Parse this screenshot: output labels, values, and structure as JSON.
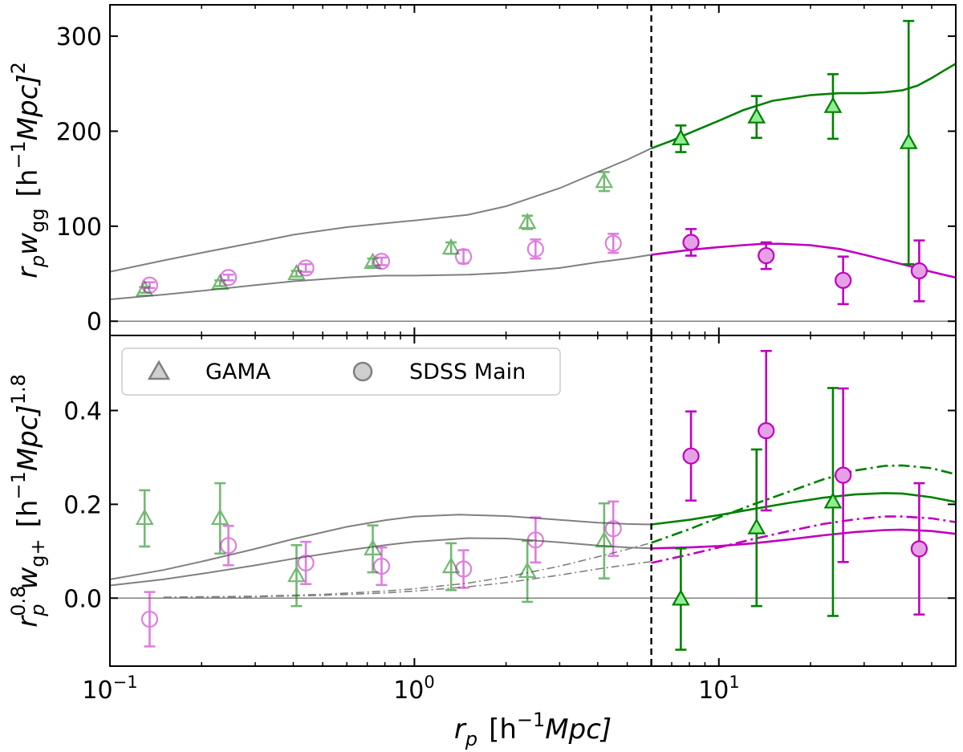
{
  "chart_data": [
    {
      "type": "scatter",
      "panel": "top",
      "ylabel": "r_p w_gg [h^-1 Mpc]^2",
      "ylim": [
        -15,
        333
      ],
      "yticks": [
        0,
        100,
        200,
        300
      ],
      "ytick_labels": [
        "0",
        "100",
        "200",
        "300"
      ],
      "xscale": "log",
      "xlim": [
        0.1,
        60
      ],
      "series": [
        {
          "name": "GAMA",
          "color": "#008000",
          "fill": "#90ee90",
          "marker": "triangle",
          "kind": "points",
          "x": [
            0.13,
            0.23,
            0.41,
            0.73,
            1.32,
            2.35,
            4.2
          ],
          "y": [
            33,
            40,
            50,
            62,
            77,
            104,
            147
          ],
          "err": [
            3,
            3,
            3,
            4,
            6,
            7,
            10
          ],
          "alpha": 0.55,
          "open": true
        },
        {
          "name": "GAMA",
          "color": "#008000",
          "fill": "#90ee90",
          "marker": "triangle",
          "kind": "points",
          "x": [
            7.5,
            13.3,
            23.7,
            42.0
          ],
          "y": [
            192,
            215,
            226,
            188
          ],
          "err": [
            14,
            22,
            34,
            128
          ],
          "alpha": 1,
          "open": false
        },
        {
          "name": "SDSS Main",
          "color": "#bf00bf",
          "fill": "#e6a0e6",
          "marker": "circle",
          "kind": "points",
          "x": [
            0.135,
            0.245,
            0.44,
            0.78,
            1.45,
            2.5,
            4.5
          ],
          "y": [
            38,
            46,
            56,
            63,
            68,
            76,
            82
          ],
          "err": [
            3,
            3,
            4,
            4,
            7,
            10,
            10
          ],
          "alpha": 0.5,
          "open": true
        },
        {
          "name": "SDSS Main",
          "color": "#bf00bf",
          "fill": "#e6a0e6",
          "marker": "circle",
          "kind": "points",
          "x": [
            8.1,
            14.3,
            25.6,
            45.5
          ],
          "y": [
            83,
            69,
            43,
            53
          ],
          "err": [
            14,
            14,
            25,
            32
          ],
          "alpha": 1,
          "open": false
        },
        {
          "name": "GAMA model",
          "color": "#808080",
          "kind": "line",
          "width": 2,
          "x": [
            0.1,
            0.15,
            0.2,
            0.3,
            0.4,
            0.6,
            0.8,
            1.0,
            1.5,
            2,
            3,
            4,
            5,
            6
          ],
          "y": [
            52,
            64,
            72,
            83,
            91,
            99,
            103,
            106,
            112,
            121,
            140,
            157,
            170,
            182
          ]
        },
        {
          "name": "SDSS model",
          "color": "#808080",
          "kind": "line",
          "width": 2,
          "x": [
            0.1,
            0.15,
            0.2,
            0.3,
            0.4,
            0.6,
            0.8,
            1.0,
            1.5,
            2,
            3,
            4,
            5,
            6
          ],
          "y": [
            23,
            28,
            32,
            38,
            42,
            46,
            48,
            48,
            49,
            51,
            56,
            62,
            66,
            70
          ]
        },
        {
          "name": "GAMA model (large scale)",
          "color": "#008000",
          "kind": "line",
          "width": 2.6,
          "x": [
            6,
            7,
            8,
            10,
            12,
            15,
            20,
            25,
            30,
            35,
            40,
            45,
            50,
            55,
            60
          ],
          "y": [
            182,
            190,
            198,
            211,
            222,
            232,
            238,
            240,
            240,
            241,
            243,
            248,
            256,
            264,
            271
          ]
        },
        {
          "name": "SDSS model (large scale)",
          "color": "#bf00bf",
          "kind": "line",
          "width": 2.6,
          "x": [
            6,
            8,
            10,
            12,
            14,
            16,
            20,
            25,
            30,
            40,
            50,
            60
          ],
          "y": [
            70,
            75,
            78,
            80,
            81.5,
            81.5,
            80,
            76,
            70,
            60,
            52,
            46
          ]
        },
        {
          "name": "zero",
          "color": "#808080",
          "kind": "line",
          "width": 1.5,
          "x": [
            0.1,
            60
          ],
          "y": [
            0,
            0
          ]
        }
      ]
    },
    {
      "type": "scatter",
      "panel": "bottom",
      "ylabel": "r_p^0.8 w_g+ [h^-1 Mpc]^1.8",
      "xlabel": "r_p [h^-1 Mpc]",
      "ylim": [
        -0.145,
        0.56
      ],
      "yticks": [
        0.0,
        0.2,
        0.4
      ],
      "ytick_labels": [
        "0.0",
        "0.2",
        "0.4"
      ],
      "xscale": "log",
      "xlim": [
        0.1,
        60
      ],
      "xticks": [
        0.1,
        1,
        10
      ],
      "series": [
        {
          "name": "GAMA",
          "color": "#008000",
          "fill": "#90ee90",
          "marker": "triangle",
          "kind": "points",
          "x": [
            0.13,
            0.23,
            0.41,
            0.73,
            1.32,
            2.35,
            4.2
          ],
          "y": [
            0.17,
            0.17,
            0.048,
            0.105,
            0.067,
            0.057,
            0.122
          ],
          "err": [
            0.06,
            0.075,
            0.065,
            0.05,
            0.05,
            0.065,
            0.08
          ],
          "alpha": 0.55,
          "open": true
        },
        {
          "name": "GAMA",
          "color": "#008000",
          "fill": "#90ee90",
          "marker": "triangle",
          "kind": "points",
          "x": [
            7.5,
            13.3,
            23.7
          ],
          "y": [
            -0.002,
            0.15,
            0.205
          ],
          "err": [
            0.108,
            0.167,
            0.243
          ],
          "alpha": 1,
          "open": false
        },
        {
          "name": "SDSS Main",
          "color": "#bf00bf",
          "fill": "#e6a0e6",
          "marker": "circle",
          "kind": "points",
          "x": [
            0.135,
            0.245,
            0.44,
            0.78,
            1.45,
            2.5,
            4.5
          ],
          "y": [
            -0.045,
            0.112,
            0.075,
            0.068,
            0.062,
            0.124,
            0.148
          ],
          "err": [
            0.058,
            0.042,
            0.045,
            0.04,
            0.04,
            0.048,
            0.058
          ],
          "alpha": 0.5,
          "open": true
        },
        {
          "name": "SDSS Main",
          "color": "#bf00bf",
          "fill": "#e6a0e6",
          "marker": "circle",
          "kind": "points",
          "x": [
            8.1,
            14.3,
            25.6,
            45.5
          ],
          "y": [
            0.303,
            0.357,
            0.262,
            0.105
          ],
          "err": [
            0.095,
            0.17,
            0.185,
            0.14
          ],
          "alpha": 1,
          "open": false
        },
        {
          "name": "GAMA model",
          "color": "#808080",
          "kind": "line",
          "width": 2,
          "x": [
            0.1,
            0.15,
            0.2,
            0.3,
            0.4,
            0.6,
            0.8,
            1.0,
            1.4,
            2,
            3,
            4,
            5,
            6
          ],
          "y": [
            0.04,
            0.06,
            0.078,
            0.105,
            0.126,
            0.152,
            0.166,
            0.174,
            0.178,
            0.175,
            0.167,
            0.161,
            0.158,
            0.157
          ]
        },
        {
          "name": "SDSS model",
          "color": "#808080",
          "kind": "line",
          "width": 2,
          "x": [
            0.1,
            0.15,
            0.2,
            0.3,
            0.4,
            0.6,
            0.8,
            1.0,
            1.5,
            2,
            3,
            4,
            5,
            6
          ],
          "y": [
            0.027,
            0.04,
            0.052,
            0.07,
            0.084,
            0.102,
            0.113,
            0.12,
            0.128,
            0.127,
            0.119,
            0.112,
            0.108,
            0.106
          ]
        },
        {
          "name": "GAMA linear model",
          "color": "#808080",
          "kind": "line",
          "width": 1.6,
          "dash": "10 4 2 4",
          "x": [
            0.15,
            0.3,
            0.5,
            0.8,
            1.0,
            1.5,
            2,
            3,
            4,
            5,
            6
          ],
          "y": [
            0.002,
            0.004,
            0.008,
            0.015,
            0.02,
            0.032,
            0.045,
            0.068,
            0.088,
            0.104,
            0.118
          ]
        },
        {
          "name": "SDSS linear model",
          "color": "#808080",
          "kind": "line",
          "width": 1.6,
          "dash": "10 4 2 4",
          "x": [
            0.15,
            0.3,
            0.5,
            0.8,
            1.0,
            1.5,
            2,
            3,
            4,
            5,
            6
          ],
          "y": [
            0.001,
            0.003,
            0.006,
            0.011,
            0.015,
            0.024,
            0.033,
            0.049,
            0.062,
            0.071,
            0.078
          ]
        },
        {
          "name": "GAMA model (large scale)",
          "color": "#008000",
          "kind": "line",
          "width": 2.6,
          "x": [
            6,
            8,
            10,
            13,
            17,
            22,
            28,
            35,
            40,
            50,
            60
          ],
          "y": [
            0.157,
            0.167,
            0.177,
            0.19,
            0.203,
            0.214,
            0.221,
            0.224,
            0.223,
            0.215,
            0.205
          ]
        },
        {
          "name": "SDSS model (large scale)",
          "color": "#bf00bf",
          "kind": "line",
          "width": 2.6,
          "x": [
            6,
            8,
            10,
            13,
            17,
            22,
            28,
            35,
            40,
            50,
            60
          ],
          "y": [
            0.106,
            0.108,
            0.111,
            0.117,
            0.125,
            0.134,
            0.141,
            0.145,
            0.146,
            0.143,
            0.137
          ]
        },
        {
          "name": "GAMA linear model (large scale)",
          "color": "#008000",
          "kind": "line",
          "width": 2.6,
          "dash": "14 5 3 5",
          "x": [
            6,
            8,
            10,
            13,
            17,
            22,
            28,
            35,
            40,
            50,
            60
          ],
          "y": [
            0.118,
            0.147,
            0.172,
            0.2,
            0.227,
            0.253,
            0.272,
            0.282,
            0.283,
            0.277,
            0.264
          ]
        },
        {
          "name": "SDSS linear model (large scale)",
          "color": "#bf00bf",
          "kind": "line",
          "width": 2.6,
          "dash": "14 5 3 5",
          "x": [
            6,
            8,
            10,
            13,
            17,
            22,
            28,
            35,
            40,
            50,
            60
          ],
          "y": [
            0.075,
            0.093,
            0.108,
            0.126,
            0.143,
            0.158,
            0.168,
            0.174,
            0.174,
            0.17,
            0.162
          ]
        },
        {
          "name": "zero",
          "color": "#808080",
          "kind": "line",
          "width": 1.5,
          "x": [
            0.1,
            60
          ],
          "y": [
            0,
            0
          ]
        }
      ]
    }
  ],
  "divider_x": 6,
  "legend": {
    "position": "upper-left",
    "entries": [
      {
        "label": "GAMA",
        "marker": "triangle"
      },
      {
        "label": "SDSS Main",
        "marker": "circle"
      }
    ]
  },
  "axes": {
    "top_ylabel_parts": {
      "a": "r",
      "a_sub": "p",
      "b": "w",
      "b_sub": "gg",
      "c": "[h",
      "c_sup": "−1",
      "d": "Mpc]",
      "d_sup": "2"
    },
    "bottom_ylabel_parts": {
      "a": "r",
      "a_sup": "0.8",
      "a_sub": "p",
      "b": "w",
      "b_sub": "g+",
      "c": "[h",
      "c_sup": "−1",
      "d": "Mpc]",
      "d_sup": "1.8"
    },
    "xlabel_parts": {
      "a": "r",
      "a_sub": "p",
      "b": "[h",
      "b_sup": "−1",
      "c": "Mpc]"
    },
    "xtick_labels": [
      {
        "base": "10",
        "exp": "−1"
      },
      {
        "base": "10",
        "exp": "0"
      },
      {
        "base": "10",
        "exp": "1"
      }
    ]
  }
}
